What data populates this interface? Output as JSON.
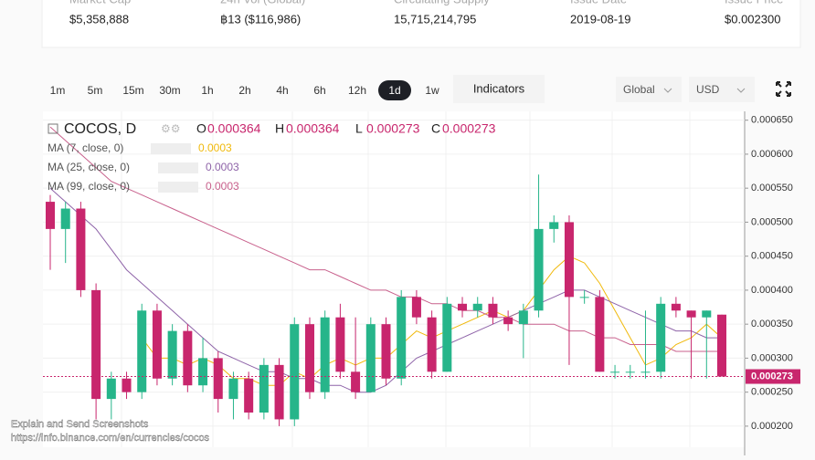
{
  "stats": [
    {
      "label": "Market Cap",
      "value": "$5,358,888"
    },
    {
      "label": "24h Vol (Global)",
      "value": "฿13 ($116,986)"
    },
    {
      "label": "Circulating Supply",
      "value": "15,715,214,795"
    },
    {
      "label": "Issue Date",
      "value": "2019-08-19"
    },
    {
      "label": "Issue Price",
      "value": "$0.002300"
    }
  ],
  "intervals": [
    "1m",
    "5m",
    "15m",
    "30m",
    "1h",
    "2h",
    "4h",
    "6h",
    "12h",
    "1d",
    "1w"
  ],
  "selected_interval": "1d",
  "indicators_button": "Indicators",
  "region_select": "Global",
  "currency_select": "USD",
  "watermark": [
    "Explain and Send Screenshots",
    "https://info.binance.com/en/currencies/cocos"
  ],
  "chart_data": {
    "type": "candlestick",
    "title": "COCOS, D",
    "ohlc_keys": [
      "O",
      "H",
      "L",
      "C"
    ],
    "up_color": "#26b58a",
    "down_color": "#c8266d",
    "open": [
      0.00053,
      0.00049,
      0.00052,
      0.0004,
      0.00024,
      0.00027,
      0.00025,
      0.00037,
      0.00027,
      0.00034,
      0.00026,
      0.0003,
      0.00024,
      0.00027,
      0.00022,
      0.00029,
      0.00021,
      0.00035,
      0.00025,
      0.00036,
      0.00028,
      0.00025,
      0.00035,
      0.00027,
      0.00039,
      0.00036,
      0.00028,
      0.00038,
      0.00037,
      0.00038,
      0.00036,
      0.00035,
      0.00037,
      0.00049,
      0.0005,
      0.00039,
      0.00039,
      0.00028,
      0.00028,
      0.00028,
      0.00028,
      0.00038,
      0.00037,
      0.00036,
      0.000364
    ],
    "high": [
      0.00054,
      0.00053,
      0.00053,
      0.00041,
      0.00028,
      0.00028,
      0.00038,
      0.00038,
      0.00035,
      0.00035,
      0.00033,
      0.00031,
      0.00028,
      0.00028,
      0.0003,
      0.0003,
      0.00036,
      0.00036,
      0.00037,
      0.00038,
      0.00036,
      0.00036,
      0.00036,
      0.0004,
      0.0004,
      0.00037,
      0.00039,
      0.00039,
      0.00039,
      0.00039,
      0.00037,
      0.00038,
      0.00057,
      0.00051,
      0.00051,
      0.0004,
      0.0004,
      0.00029,
      0.00029,
      0.00037,
      0.00039,
      0.00039,
      0.00037,
      0.00037,
      0.000364
    ],
    "low": [
      0.00043,
      0.00044,
      0.00039,
      0.00021,
      0.00021,
      0.00024,
      0.00024,
      0.00026,
      0.00026,
      0.00025,
      0.00025,
      0.00022,
      0.00021,
      0.00021,
      0.00021,
      0.0002,
      0.0002,
      0.00024,
      0.00024,
      0.00027,
      0.00024,
      0.00025,
      0.00026,
      0.00026,
      0.00035,
      0.00027,
      0.00028,
      0.00036,
      0.00036,
      0.00035,
      0.00034,
      0.0003,
      0.00036,
      0.00047,
      0.00029,
      0.00038,
      0.00028,
      0.00027,
      0.00027,
      0.00027,
      0.00027,
      0.00036,
      0.00027,
      0.00027,
      0.000273
    ],
    "close": [
      0.00049,
      0.00052,
      0.0004,
      0.00024,
      0.00027,
      0.00025,
      0.00037,
      0.00027,
      0.00034,
      0.00026,
      0.0003,
      0.00024,
      0.00027,
      0.00022,
      0.00029,
      0.00021,
      0.00035,
      0.00025,
      0.00036,
      0.00028,
      0.00025,
      0.00035,
      0.00027,
      0.00039,
      0.00036,
      0.00028,
      0.00038,
      0.00037,
      0.00038,
      0.00036,
      0.00035,
      0.00037,
      0.00049,
      0.0005,
      0.00039,
      0.00039,
      0.00028,
      0.00028,
      0.00028,
      0.00028,
      0.00038,
      0.00037,
      0.00036,
      0.00037,
      0.000273
    ],
    "series": [
      {
        "name": "MA (7, close, 0)",
        "legend_value": "0.0003",
        "color": "#f0b90b",
        "values": [
          null,
          null,
          null,
          null,
          null,
          null,
          0.00033,
          0.0003,
          0.0003,
          0.00029,
          0.0003,
          0.00029,
          0.00027,
          0.00027,
          0.00026,
          0.00026,
          0.00028,
          0.00027,
          0.00029,
          0.0003,
          0.00029,
          0.0003,
          0.0003,
          0.00032,
          0.00034,
          0.00033,
          0.00034,
          0.00035,
          0.00036,
          0.00037,
          0.00036,
          0.00037,
          0.0004,
          0.00043,
          0.00045,
          0.00044,
          0.00041,
          0.00037,
          0.00033,
          0.00029,
          0.0003,
          0.00032,
          0.00033,
          0.00035,
          0.00033
        ]
      },
      {
        "name": "MA (25, close, 0)",
        "legend_value": "0.0003",
        "color": "#8e63a8",
        "values": [
          0.00055,
          0.00053,
          0.00051,
          0.00049,
          0.00046,
          0.00043,
          0.00041,
          0.00039,
          0.00037,
          0.00035,
          0.00033,
          0.00031,
          0.0003,
          0.00029,
          0.00028,
          0.00028,
          0.00027,
          0.00027,
          0.00026,
          0.00026,
          0.00025,
          0.00025,
          0.00026,
          0.00028,
          0.0003,
          0.00031,
          0.00032,
          0.00033,
          0.00034,
          0.00035,
          0.00036,
          0.00037,
          0.00038,
          0.00039,
          0.0004,
          0.0004,
          0.00039,
          0.00038,
          0.00037,
          0.00036,
          0.00035,
          0.00034,
          0.00034,
          0.00033,
          0.00033
        ]
      },
      {
        "name": "MA (99, close, 0)",
        "legend_value": "0.0003",
        "color": "#c8608c",
        "values": [
          0.00064,
          0.00062,
          0.0006,
          0.00058,
          0.00056,
          0.00055,
          0.00054,
          0.00053,
          0.00052,
          0.00051,
          0.0005,
          0.00049,
          0.00048,
          0.00047,
          0.00046,
          0.00045,
          0.00044,
          0.00043,
          0.00043,
          0.00042,
          0.00041,
          0.0004,
          0.0004,
          0.00039,
          0.00039,
          0.00038,
          0.00038,
          0.00037,
          0.00037,
          0.00036,
          0.00036,
          0.00035,
          0.00035,
          0.00035,
          0.00034,
          0.00034,
          0.00033,
          0.00033,
          0.00032,
          0.00032,
          0.00032,
          0.00031,
          0.00031,
          0.00031,
          0.00031
        ]
      }
    ],
    "ylim": [
      0.000169,
      0.000663
    ],
    "yticks": [
      {
        "value": 0.0002,
        "label": "0.000200"
      },
      {
        "value": 0.00025,
        "label": "0.000250"
      },
      {
        "value": 0.0003,
        "label": "0.000300"
      },
      {
        "value": 0.00035,
        "label": "0.000350"
      },
      {
        "value": 0.0004,
        "label": "0.000400"
      },
      {
        "value": 0.00045,
        "label": "0.000450"
      },
      {
        "value": 0.0005,
        "label": "0.000500"
      },
      {
        "value": 0.00055,
        "label": "0.000550"
      },
      {
        "value": 0.0006,
        "label": "0.000600"
      },
      {
        "value": 0.00065,
        "label": "0.000650"
      }
    ],
    "grid": true
  }
}
